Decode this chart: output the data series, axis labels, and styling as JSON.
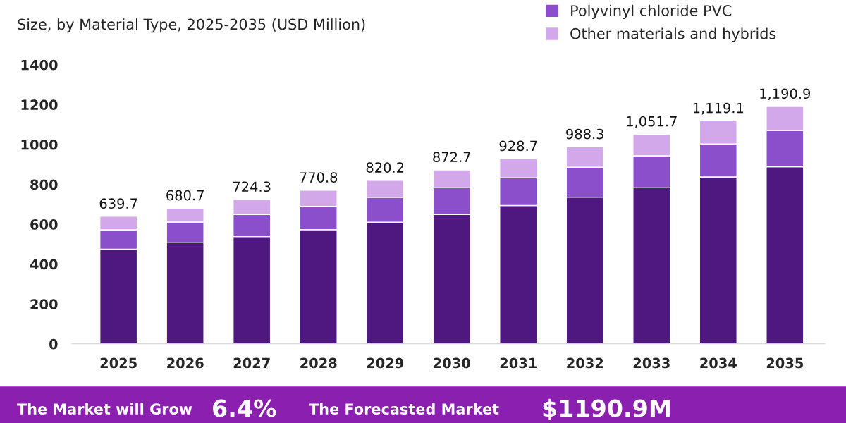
{
  "chart_data": {
    "type": "bar",
    "subtitle": "Size, by Material Type, 2025-2035 (USD Million)",
    "categories": [
      "2025",
      "2026",
      "2027",
      "2028",
      "2029",
      "2030",
      "2031",
      "2032",
      "2033",
      "2034",
      "2035"
    ],
    "stacked": true,
    "series": [
      {
        "color": "#4f1780",
        "values": [
          475,
          507,
          538,
          573,
          610,
          649,
          694,
          736,
          783,
          837,
          888
        ]
      },
      {
        "name": "Polyvinyl chloride PVC",
        "color": "#8b4fcc",
        "values": [
          97,
          104,
          111,
          117,
          125,
          134,
          139,
          150,
          160,
          166,
          181
        ]
      },
      {
        "name": "Other materials and hybrids",
        "color": "#d3a8ea",
        "values": [
          67.7,
          69.7,
          75.3,
          80.8,
          85.2,
          89.7,
          95.7,
          102.3,
          108.7,
          116.1,
          121.9
        ]
      }
    ],
    "totals": [
      "639.7",
      "680.7",
      "724.3",
      "770.8",
      "820.2",
      "872.7",
      "928.7",
      "988.3",
      "1,051.7",
      "1,119.1",
      "1,190.9"
    ],
    "ylim": [
      0,
      1400
    ],
    "yticks": [
      0,
      200,
      400,
      600,
      800,
      1000,
      1200,
      1400
    ],
    "grid": false,
    "legend": "top right",
    "annotations": [
      "The Market will Grow",
      "6.4%",
      "The Forecasted Market",
      "$1190.9M"
    ]
  }
}
